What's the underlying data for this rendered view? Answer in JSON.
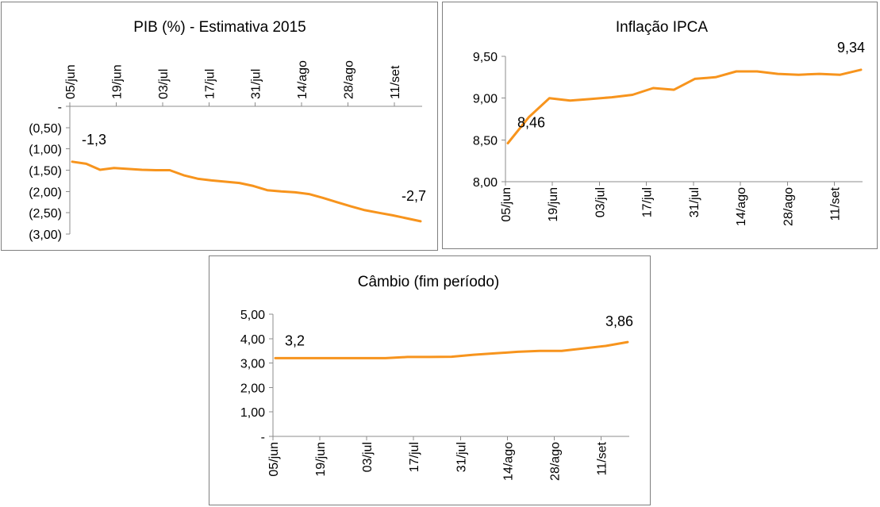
{
  "colors": {
    "series": "#F7941D",
    "axis": "#8C8C8C",
    "border": "#7F7F7F"
  },
  "chart_data": [
    {
      "type": "line",
      "title": "PIB (%) - Estimativa 2015",
      "x_tick_labels": [
        "05/jun",
        "19/jun",
        "03/jul",
        "17/jul",
        "31/jul",
        "14/ago",
        "28/ago",
        "11/set"
      ],
      "y_tick_labels": [
        "-",
        "(0,50)",
        "(1,00)",
        "(1,50)",
        "(2,00)",
        "(2,50)",
        "(3,00)"
      ],
      "ylim": [
        -3.0,
        0
      ],
      "x_axis_position": "top",
      "grid": false,
      "data_labels": [
        {
          "text": "-1,3",
          "at": "first"
        },
        {
          "text": "-2,7",
          "at": "last"
        }
      ],
      "series": [
        {
          "values": [
            -1.3,
            -1.35,
            -1.49,
            -1.45,
            -1.47,
            -1.49,
            -1.5,
            -1.5,
            -1.62,
            -1.7,
            -1.74,
            -1.77,
            -1.8,
            -1.87,
            -1.97,
            -2.0,
            -2.02,
            -2.06,
            -2.15,
            -2.25,
            -2.35,
            -2.44,
            -2.5,
            -2.56,
            -2.63,
            -2.7
          ]
        }
      ]
    },
    {
      "type": "line",
      "title": "Inflação IPCA",
      "x_tick_labels": [
        "05/jun",
        "19/jun",
        "03/jul",
        "17/jul",
        "31/jul",
        "14/ago",
        "28/ago",
        "11/set"
      ],
      "y_tick_labels": [
        "8,00",
        "8,50",
        "9,00",
        "9,50"
      ],
      "ylim": [
        8.0,
        9.5
      ],
      "grid": false,
      "data_labels": [
        {
          "text": "8,46",
          "at": "first"
        },
        {
          "text": "9,34",
          "at": "last"
        }
      ],
      "series": [
        {
          "values": [
            8.46,
            8.77,
            9.0,
            8.97,
            8.99,
            9.01,
            9.04,
            9.12,
            9.1,
            9.23,
            9.25,
            9.32,
            9.32,
            9.29,
            9.28,
            9.29,
            9.28,
            9.34
          ]
        }
      ]
    },
    {
      "type": "line",
      "title": "Câmbio (fim período)",
      "x_tick_labels": [
        "05/jun",
        "19/jun",
        "03/jul",
        "17/jul",
        "31/jul",
        "14/ago",
        "28/ago",
        "11/set"
      ],
      "y_tick_labels": [
        "-",
        "1,00",
        "2,00",
        "3,00",
        "4,00",
        "5,00"
      ],
      "ylim": [
        0,
        5.0
      ],
      "grid": false,
      "data_labels": [
        {
          "text": "3,2",
          "at": "first"
        },
        {
          "text": "3,86",
          "at": "last"
        }
      ],
      "series": [
        {
          "values": [
            3.2,
            3.2,
            3.2,
            3.2,
            3.2,
            3.2,
            3.25,
            3.25,
            3.26,
            3.34,
            3.4,
            3.46,
            3.5,
            3.5,
            3.6,
            3.7,
            3.86
          ]
        }
      ]
    }
  ]
}
